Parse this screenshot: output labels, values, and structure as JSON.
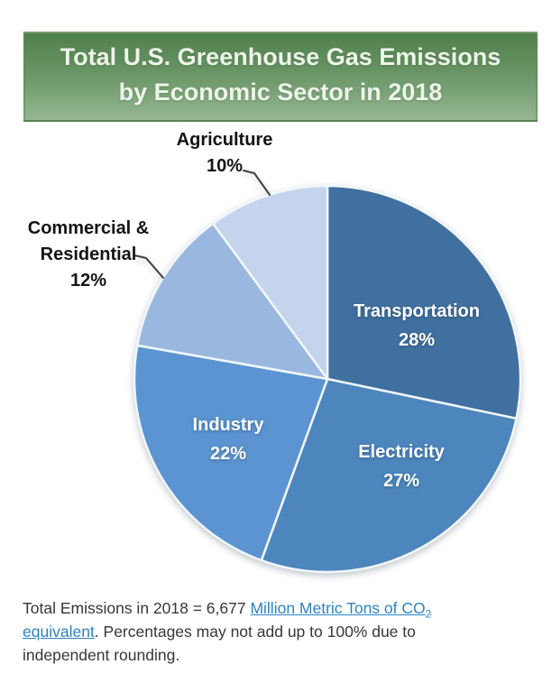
{
  "banner": {
    "title_line1": "Total U.S. Greenhouse Gas Emissions",
    "title_line2": "by Economic Sector in 2018"
  },
  "chart_data": {
    "type": "pie",
    "title": "Total U.S. Greenhouse Gas Emissions by Economic Sector in 2018",
    "unit": "percent of total gross emissions",
    "year": "2018",
    "start_angle": "top, clockwise",
    "slices": [
      {
        "label": "Transportation",
        "value": 28,
        "color": "#40709f",
        "label_placement": "inside"
      },
      {
        "label": "Electricity",
        "value": 27,
        "color": "#4d86bc",
        "label_placement": "inside"
      },
      {
        "label": "Industry",
        "value": 22,
        "color": "#5b94d1",
        "label_placement": "inside"
      },
      {
        "label": "Commercial & Residential",
        "value": 12,
        "color": "#9ab8df",
        "label_placement": "outside"
      },
      {
        "label": "Agriculture",
        "value": 10,
        "color": "#c3d4ec",
        "label_placement": "outside"
      }
    ]
  },
  "callouts": {
    "agriculture_name": "Agriculture",
    "agriculture_pct": "10%",
    "commercial_line1": "Commercial &",
    "commercial_line2": "Residential",
    "commercial_pct": "12%",
    "transportation_name": "Transportation",
    "transportation_pct": "28%",
    "electricity_name": "Electricity",
    "electricity_pct": "27%",
    "industry_name": "Industry",
    "industry_pct": "22%"
  },
  "footer": {
    "text_before": "Total Emissions in 2018 = 6,677 ",
    "link_line1": "Million Metric Tons of CO",
    "link_sub": "2",
    "link_line2": "equivalent",
    "text_after_1": ". Percentages may not add up to 100% due to",
    "text_after_2": "independent rounding."
  },
  "colors": {
    "banner_gradient_top": "#4f7f4b",
    "banner_gradient_bottom": "#96b791",
    "banner_text": "#edf4ea",
    "slice_divider": "#f2f7fc",
    "leader_line": "#3f3f3f",
    "link": "#2b84c6",
    "body_text": "#373737"
  }
}
